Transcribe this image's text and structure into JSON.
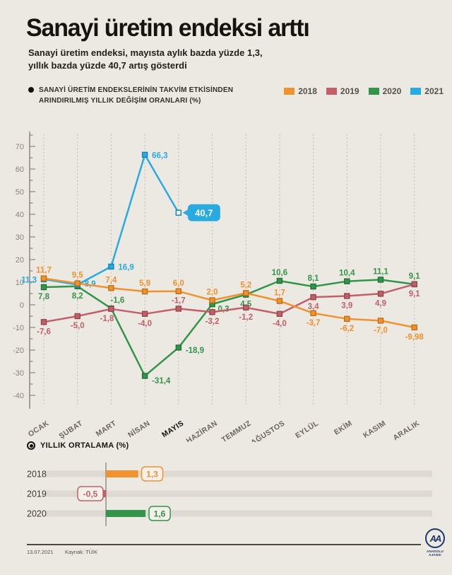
{
  "page": {
    "background": "#ECE8E2"
  },
  "header": {
    "title": "Sanayi üretim endeksi arttı",
    "subtitle_lines": [
      "Sanayi üretim endeksi, mayısta aylık bazda yüzde 1,3,",
      "yıllık bazda yüzde 40,7 artış gösterdi"
    ]
  },
  "chart_section": {
    "caption_lines": [
      "SANAYİ ÜRETİM ENDEKSLERİNİN TAKVİM ETKİSİNDEN",
      "ARINDIRILMIŞ YILLIK DEĞİŞİM ORANLARI (%)"
    ]
  },
  "chart_data": [
    {
      "type": "line",
      "title": "SANAYİ ÜRETİM ENDEKSLERİNİN TAKVİM ETKİSİNDEN ARINDIRILMIŞ YILLIK DEĞİŞİM ORANLARI (%)",
      "categories": [
        "OCAK",
        "ŞUBAT",
        "MART",
        "NİSAN",
        "MAYIS",
        "HAZİRAN",
        "TEMMUZ",
        "AĞUSTOS",
        "EYLÜL",
        "EKİM",
        "KASIM",
        "ARALIK"
      ],
      "highlight_category": "MAYIS",
      "ylim": [
        -45,
        76
      ],
      "yticks": [
        70,
        60,
        50,
        40,
        30,
        20,
        10,
        0,
        -10,
        -20,
        -30,
        -40
      ],
      "grid": "vertical-dashed",
      "legend_position": "top-right",
      "series": [
        {
          "name": "2018",
          "color": "#F0922D",
          "border": "#C06F14",
          "values": [
            11.7,
            9.5,
            7.4,
            5.9,
            6.0,
            2.0,
            5.2,
            1.7,
            -3.7,
            -6.2,
            -7.0,
            -9.98
          ],
          "labels": [
            "11,7",
            "9,5",
            "7,4",
            "5,9",
            "6,0",
            "2,0",
            "5,2",
            "1,7",
            "-3,7",
            "-6,2",
            "-7,0",
            "-9,98"
          ],
          "label_pos": [
            "above",
            "above",
            "above",
            "above",
            "above",
            "above",
            "above",
            "above",
            "below",
            "below",
            "below",
            "below"
          ],
          "label_offsets": {}
        },
        {
          "name": "2019",
          "color": "#C2606A",
          "border": "#94454E",
          "values": [
            -7.6,
            -5.0,
            -1.8,
            -4.0,
            -1.7,
            -3.2,
            -1.2,
            -4.0,
            3.4,
            3.9,
            4.9,
            9.1
          ],
          "labels": [
            "-7,6",
            "-5,0",
            "-1,8",
            "-4,0",
            "-1,7",
            "-3,2",
            "-1,2",
            "-4,0",
            "3,4",
            "3,9",
            "4,9",
            "9,1"
          ],
          "label_pos": [
            "below",
            "below",
            "below",
            "below",
            "above",
            "below",
            "below",
            "below",
            "below",
            "below",
            "below",
            "below"
          ],
          "label_offsets": {
            "2": [
              -6,
              0
            ]
          }
        },
        {
          "name": "2020",
          "color": "#339549",
          "border": "#1F7337",
          "values": [
            7.8,
            8.2,
            -1.6,
            -31.4,
            -18.9,
            0.3,
            4.5,
            10.6,
            8.1,
            10.4,
            11.1,
            9.1
          ],
          "labels": [
            "7,8",
            "8,2",
            "-1,6",
            "-31,4",
            "-18,9",
            "0,3",
            "4,5",
            "10,6",
            "8,1",
            "10,4",
            "11,1",
            "9,1"
          ],
          "label_pos": [
            "below",
            "below",
            "above",
            "right",
            "right",
            "right",
            "below",
            "above",
            "above",
            "above",
            "above",
            "above"
          ],
          "label_offsets": {
            "2": [
              9,
              0
            ],
            "3": [
              0,
              6
            ],
            "4": [
              0,
              3
            ],
            "5": [
              -2,
              6
            ]
          }
        },
        {
          "name": "2021",
          "color": "#29ABE2",
          "border": "#1581B5",
          "values": [
            11.3,
            8.9,
            16.9,
            66.3,
            40.7,
            null,
            null,
            null,
            null,
            null,
            null,
            null
          ],
          "labels": [
            "11,3",
            "8,9",
            "16,9",
            "66,3",
            "40,7",
            null,
            null,
            null,
            null,
            null,
            null,
            null
          ],
          "label_pos": [
            "left",
            "right",
            "right",
            "right",
            "callout",
            null,
            null,
            null,
            null,
            null,
            null,
            null
          ],
          "label_offsets": {
            "1": [
              0,
              -2
            ]
          },
          "last_marker": "open"
        }
      ]
    },
    {
      "type": "bar",
      "title": "YILLIK ORTALAMA (%)",
      "orientation": "horizontal",
      "categories": [
        "2018",
        "2019",
        "2020"
      ],
      "values": [
        1.3,
        -0.5,
        1.6
      ],
      "labels": [
        "1,3",
        "-0,5",
        "1,6"
      ],
      "colors": [
        "#F0922D",
        "#C2606A",
        "#339549"
      ]
    }
  ],
  "footer": {
    "date": "13.07.2021",
    "source": "Kaynak: TÜİK",
    "logo_monogram": "AA",
    "logo_caption": "ANADOLU AJANSI"
  }
}
